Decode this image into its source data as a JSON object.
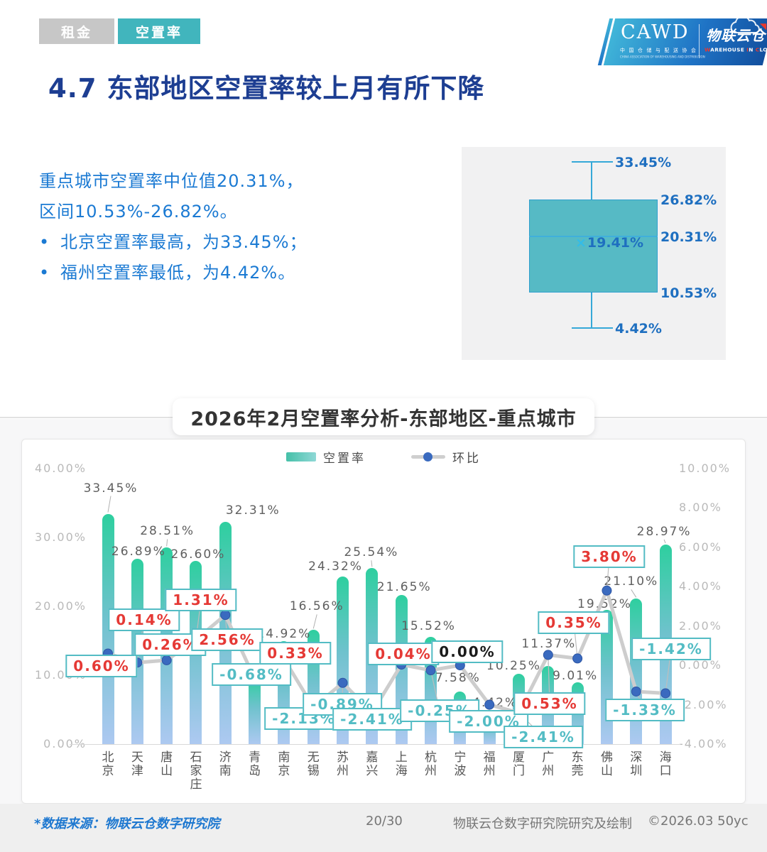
{
  "tabs": [
    {
      "label": "租金",
      "active": false
    },
    {
      "label": "空置率",
      "active": true
    }
  ],
  "logo": {
    "org_acronym": "CAWD",
    "org_name_cn": "中 国 仓 储 与 配 送 协 会",
    "org_name_en": "CHINA ASSOCIATION OF WAREHOUSING AND DISTRIBUTION",
    "brand_cn": "物联云仓",
    "brand_en_segments": [
      {
        "text": "W",
        "red": true
      },
      {
        "text": "AREHOUSE ",
        "red": false
      },
      {
        "text": "I",
        "red": true
      },
      {
        "text": "N ",
        "red": false
      },
      {
        "text": "C",
        "red": true
      },
      {
        "text": "LOUD",
        "red": false
      }
    ]
  },
  "page_title": "4.7 东部地区空置率较上月有所下降",
  "summary": {
    "line1": "重点城市空置率中位值20.31%，",
    "line2": "区间10.53%-26.82%。",
    "bullets": [
      "北京空置率最高，为33.45%；",
      "福州空置率最低，为4.42%。"
    ]
  },
  "boxplot": {
    "max": "33.45%",
    "q3": "26.82%",
    "median": "20.31%",
    "mean": "19.41%",
    "mean_marker": "×",
    "q1": "10.53%",
    "min": "4.42%"
  },
  "chart_data": {
    "type": "bar",
    "title": "2026年2月空置率分析-东部地区-重点城市",
    "categories": [
      "北京",
      "天津",
      "唐山",
      "石家庄",
      "济南",
      "青岛",
      "南京",
      "无锡",
      "苏州",
      "嘉兴",
      "上海",
      "杭州",
      "宁波",
      "福州",
      "厦门",
      "广州",
      "东莞",
      "佛山",
      "深圳",
      "海口"
    ],
    "series": [
      {
        "name": "空置率",
        "kind": "bar",
        "axis": "left",
        "values": [
          33.45,
          26.89,
          28.51,
          26.6,
          32.31,
          9.64,
          14.92,
          16.56,
          24.32,
          25.54,
          21.65,
          15.52,
          7.58,
          4.42,
          10.25,
          11.37,
          9.01,
          19.52,
          21.1,
          28.97
        ]
      },
      {
        "name": "环比",
        "kind": "line",
        "axis": "right",
        "values": [
          0.6,
          0.14,
          0.26,
          1.31,
          2.56,
          -0.68,
          0.33,
          -2.13,
          -0.89,
          -2.41,
          0.04,
          -0.25,
          0.0,
          -2.0,
          -2.41,
          0.53,
          0.35,
          3.8,
          -1.33,
          -1.42
        ]
      }
    ],
    "left_axis": {
      "range": [
        0,
        40
      ],
      "tick_values": [
        40,
        30,
        20,
        10,
        0
      ],
      "tick_labels": [
        "40.00%",
        "30.00%",
        "20.00%",
        "10.00%",
        "0.00%"
      ]
    },
    "right_axis": {
      "range": [
        -4,
        10
      ],
      "tick_values": [
        10,
        8,
        6,
        4,
        2,
        0,
        -2,
        -4
      ],
      "tick_labels": [
        "10.00%",
        "8.00%",
        "6.00%",
        "4.00%",
        "2.00%",
        "0.00%",
        "-2.00%",
        "-4.00%"
      ]
    },
    "legend": [
      "空置率",
      "环比"
    ],
    "grid": false,
    "legend_position": "top"
  },
  "footer": {
    "source": "*数据来源：物联云仓数字研究院",
    "page": "20/30",
    "credit": "物联云仓数字研究院研究及绘制",
    "copyright": "©2026.03 50yc"
  },
  "colors": {
    "accent_teal": "#41b5bd",
    "tab_inactive": "#c7c7c7",
    "title_navy": "#1d3e92",
    "body_blue": "#1b7ad3",
    "bar_gradient_top": "#2ecf9f",
    "bar_gradient_mid": "#6fc2cd",
    "bar_gradient_bottom": "#adc9f1",
    "line_gray": "#cdcdcd",
    "point_blue": "#3a6abf",
    "mom_positive_red": "#e53935",
    "mom_negative_teal": "#53bcc4",
    "mom_zero_black": "#1a1a1a",
    "box_fill": "#56bac5",
    "box_border": "#2f9fce",
    "boxplot_label_blue": "#1e6fc0"
  }
}
